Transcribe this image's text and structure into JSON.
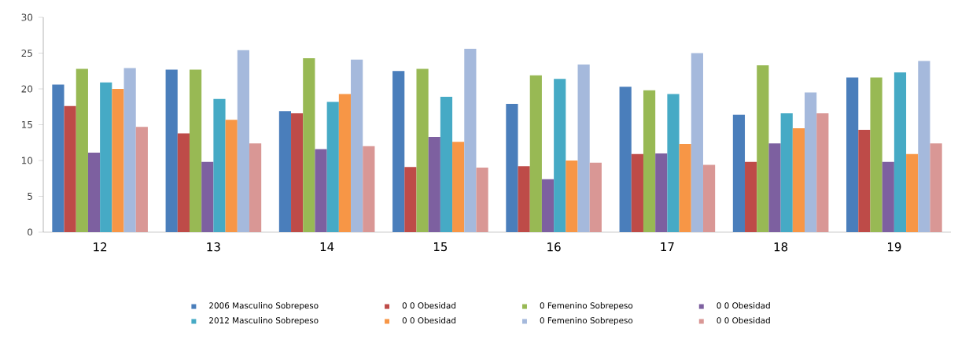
{
  "chart_data": {
    "type": "bar",
    "categories": [
      "12",
      "13",
      "14",
      "15",
      "16",
      "17",
      "18",
      "19"
    ],
    "series": [
      {
        "name": "2006 Masculino Sobrepeso",
        "color": "#4a7ebb",
        "values": [
          20.6,
          22.7,
          16.9,
          22.5,
          17.9,
          20.3,
          16.4,
          21.6
        ]
      },
      {
        "name": "0 0 Obesidad",
        "color": "#be4b48",
        "values": [
          17.6,
          13.8,
          16.6,
          9.1,
          9.2,
          10.9,
          9.8,
          14.3
        ]
      },
      {
        "name": "0 Femenino Sobrepeso",
        "color": "#98b954",
        "values": [
          22.8,
          22.7,
          24.3,
          22.8,
          21.9,
          19.8,
          23.3,
          21.6
        ]
      },
      {
        "name": "0 0 Obesidad",
        "color": "#7d60a0",
        "values": [
          11.1,
          9.8,
          11.6,
          13.3,
          7.4,
          11.0,
          12.4,
          9.8
        ]
      },
      {
        "name": "2012 Masculino Sobrepeso",
        "color": "#46aac5",
        "values": [
          20.9,
          18.6,
          18.2,
          18.9,
          21.4,
          19.3,
          16.6,
          22.3
        ]
      },
      {
        "name": "0 0 Obesidad",
        "color": "#f79646",
        "values": [
          20.0,
          15.7,
          19.3,
          12.6,
          10.0,
          12.3,
          14.5,
          10.9
        ]
      },
      {
        "name": "0 Femenino Sobrepeso",
        "color": "#a5b9dc",
        "values": [
          22.9,
          25.4,
          24.1,
          25.6,
          23.4,
          25.0,
          19.5,
          23.9
        ]
      },
      {
        "name": "0 0 Obesidad",
        "color": "#d99795",
        "values": [
          14.7,
          12.4,
          12.0,
          9.0,
          9.7,
          9.4,
          16.6,
          12.4
        ]
      }
    ],
    "ylim": [
      0,
      30
    ],
    "yticks": [
      0,
      5,
      10,
      15,
      20,
      25,
      30
    ],
    "legend": "bottom"
  }
}
